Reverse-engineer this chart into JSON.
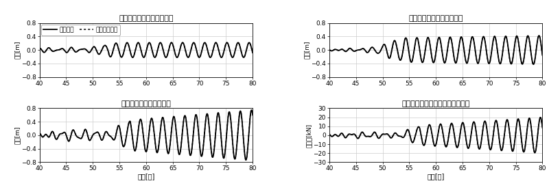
{
  "titles": [
    "振子の動き（中フレーム）",
    "振子の動き（内フレーム）",
    "振子の動き（ウェイト）",
    "装置の水平力（摇れを抑える力）"
  ],
  "ylabel_disp": "変位[m]",
  "ylabel_force": "水平力[kN]",
  "xlabel": "時刻[秒]",
  "legend_exp": "実験結果",
  "legend_num": "数値解析結果",
  "xlim": [
    40,
    80
  ],
  "ylim_disp": [
    -0.8,
    0.8
  ],
  "ylim_force": [
    -30,
    30
  ],
  "yticks_disp": [
    -0.8,
    -0.4,
    0,
    0.4,
    0.8
  ],
  "yticks_force": [
    -30,
    -20,
    -10,
    0,
    10,
    20,
    30
  ],
  "xticks": [
    40,
    45,
    50,
    55,
    60,
    65,
    70,
    75,
    80
  ],
  "background_color": "#ffffff",
  "line_color": "#000000",
  "grid_color": "#cccccc"
}
